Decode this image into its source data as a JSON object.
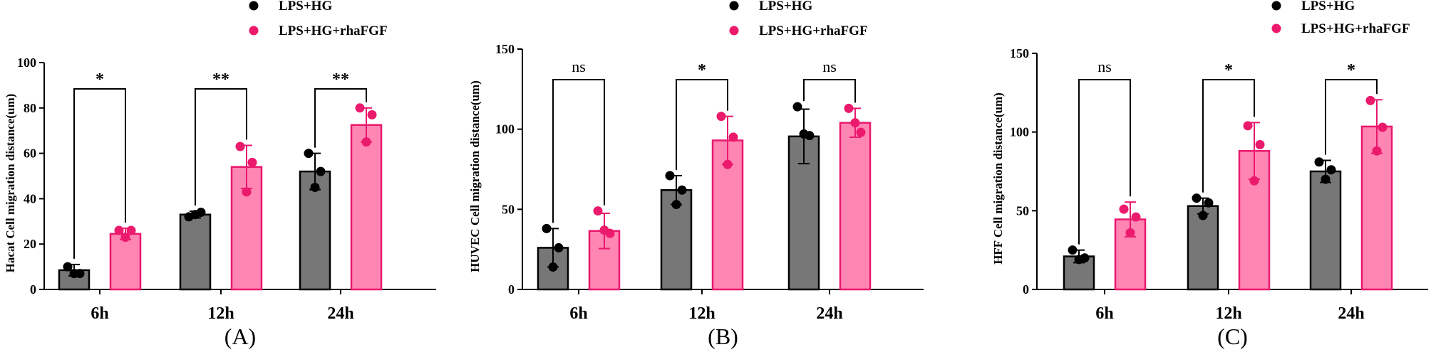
{
  "colors": {
    "group1_fill": "#777777",
    "group1_edge": "#000000",
    "group1_dot": "#000000",
    "group2_fill": "#ff85b3",
    "group2_edge": "#e8186d",
    "group2_dot": "#ec1a6c"
  },
  "chart_data": [
    {
      "type": "bar",
      "panel_label": "(A)",
      "ylabel": "Hacat Cell migration distance(um)",
      "xlabel": "",
      "ylim": [
        0,
        100
      ],
      "yticks": [
        0,
        20,
        40,
        60,
        80,
        100
      ],
      "categories": [
        "6h",
        "12h",
        "24h"
      ],
      "legend": [
        "LPS+HG",
        "LPS+HG+rhaFGF"
      ],
      "series": [
        {
          "name": "LPS+HG",
          "values": [
            8.5,
            33,
            52
          ],
          "errors": [
            2.5,
            1.5,
            8
          ],
          "points": [
            [
              10,
              7,
              7
            ],
            [
              32,
              34,
              33
            ],
            [
              60,
              52,
              45
            ]
          ]
        },
        {
          "name": "LPS+HG+rhaFGF",
          "values": [
            24.5,
            54,
            72.5
          ],
          "errors": [
            2.5,
            9.5,
            7.5
          ],
          "points": [
            [
              26,
              26,
              23
            ],
            [
              63,
              56,
              43
            ],
            [
              80,
              77,
              65
            ]
          ]
        }
      ],
      "significance": [
        "*",
        "**",
        "**"
      ]
    },
    {
      "type": "bar",
      "panel_label": "(B)",
      "ylabel": "HUVEC Cell migration distance(um)",
      "xlabel": "",
      "ylim": [
        0,
        150
      ],
      "yticks": [
        0,
        50,
        100,
        150
      ],
      "categories": [
        "6h",
        "12h",
        "24h"
      ],
      "legend": [
        "LPS+HG",
        "LPS+HG+rhaFGF"
      ],
      "series": [
        {
          "name": "LPS+HG",
          "values": [
            26,
            62,
            95.5
          ],
          "errors": [
            12,
            9,
            17
          ],
          "points": [
            [
              38,
              26,
              14
            ],
            [
              71,
              62,
              53
            ],
            [
              114,
              96,
              97
            ]
          ]
        },
        {
          "name": "LPS+HG+rhaFGF",
          "values": [
            36.5,
            93,
            104
          ],
          "errors": [
            11,
            15,
            9
          ],
          "points": [
            [
              49,
              35,
              37
            ],
            [
              108,
              95,
              78
            ],
            [
              113,
              98,
              104
            ]
          ]
        }
      ],
      "significance": [
        "ns",
        "*",
        "ns"
      ]
    },
    {
      "type": "bar",
      "panel_label": "(C)",
      "ylabel": "HFF Cell migration distance(um)",
      "xlabel": "",
      "ylim": [
        0,
        150
      ],
      "yticks": [
        0,
        50,
        100,
        150
      ],
      "categories": [
        "6h",
        "12h",
        "24h"
      ],
      "legend": [
        "LPS+HG",
        "LPS+HG+rhaFGF"
      ],
      "series": [
        {
          "name": "LPS+HG",
          "values": [
            21,
            53,
            75
          ],
          "errors": [
            4,
            5,
            7
          ],
          "points": [
            [
              25,
              20,
              19
            ],
            [
              58,
              55,
              47
            ],
            [
              81,
              76,
              70
            ]
          ]
        },
        {
          "name": "LPS+HG+rhaFGF",
          "values": [
            44.5,
            88,
            103.5
          ],
          "errors": [
            11,
            18,
            17
          ],
          "points": [
            [
              51,
              46,
              36
            ],
            [
              104,
              92,
              69
            ],
            [
              120,
              103,
              88
            ]
          ]
        }
      ],
      "significance": [
        "ns",
        "*",
        "*"
      ]
    }
  ]
}
